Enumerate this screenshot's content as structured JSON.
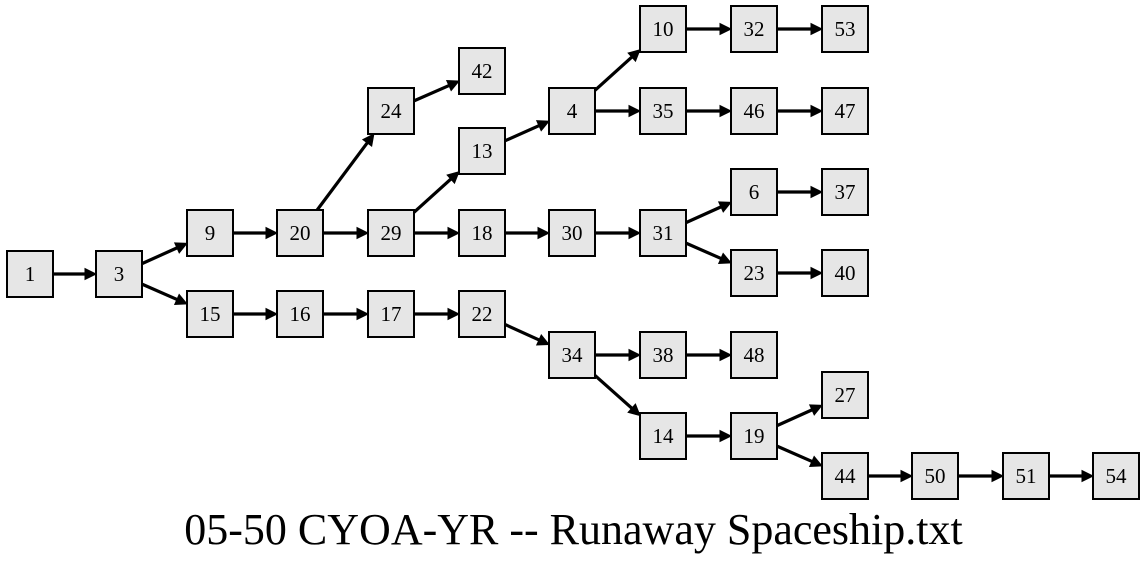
{
  "caption": "05-50 CYOA-YR -- Runaway Spaceship.txt",
  "nodes": [
    "1",
    "3",
    "9",
    "15",
    "20",
    "16",
    "24",
    "29",
    "17",
    "42",
    "13",
    "18",
    "22",
    "4",
    "30",
    "34",
    "10",
    "35",
    "31",
    "38",
    "14",
    "32",
    "46",
    "6",
    "23",
    "48",
    "19",
    "53",
    "47",
    "37",
    "40",
    "27",
    "44",
    "50",
    "51",
    "54"
  ],
  "edges": [
    [
      "1",
      "3"
    ],
    [
      "3",
      "9"
    ],
    [
      "3",
      "15"
    ],
    [
      "9",
      "20"
    ],
    [
      "20",
      "24"
    ],
    [
      "20",
      "29"
    ],
    [
      "24",
      "42"
    ],
    [
      "29",
      "13"
    ],
    [
      "29",
      "18"
    ],
    [
      "13",
      "4"
    ],
    [
      "4",
      "10"
    ],
    [
      "4",
      "35"
    ],
    [
      "10",
      "32"
    ],
    [
      "32",
      "53"
    ],
    [
      "35",
      "46"
    ],
    [
      "46",
      "47"
    ],
    [
      "18",
      "30"
    ],
    [
      "30",
      "31"
    ],
    [
      "31",
      "6"
    ],
    [
      "31",
      "23"
    ],
    [
      "6",
      "37"
    ],
    [
      "23",
      "40"
    ],
    [
      "15",
      "16"
    ],
    [
      "16",
      "17"
    ],
    [
      "17",
      "22"
    ],
    [
      "22",
      "34"
    ],
    [
      "34",
      "38"
    ],
    [
      "38",
      "48"
    ],
    [
      "34",
      "14"
    ],
    [
      "14",
      "19"
    ],
    [
      "19",
      "27"
    ],
    [
      "19",
      "44"
    ],
    [
      "44",
      "50"
    ],
    [
      "50",
      "51"
    ],
    [
      "51",
      "54"
    ]
  ],
  "colors": {
    "node_fill": "#e6e6e6",
    "stroke": "#000000"
  }
}
